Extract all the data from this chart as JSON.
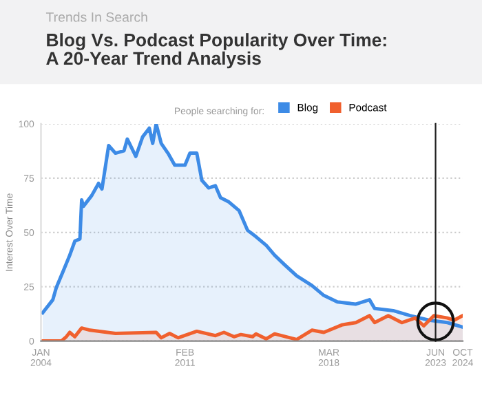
{
  "chart_data": {
    "type": "area",
    "subtitle": "Trends In Search",
    "title": "Blog Vs. Podcast Popularity Over Time:\nA 20-Year Trend Analysis",
    "ylabel": "Interest Over Time",
    "legend_title": "People searching for:",
    "legend": "top",
    "grid": "y",
    "series": [
      {
        "name": "Blog",
        "color": "#3d8be6",
        "x": [
          "2004-02",
          "2004-08",
          "2004-10",
          "2005-02",
          "2005-06",
          "2005-09",
          "2005-12",
          "2006-01",
          "2006-02",
          "2006-07",
          "2006-11",
          "2007-01",
          "2007-05",
          "2007-09",
          "2008-02",
          "2008-04",
          "2008-09",
          "2009-01",
          "2009-05",
          "2009-07",
          "2009-09",
          "2009-12",
          "2010-04",
          "2010-08",
          "2011-02",
          "2011-05",
          "2011-09",
          "2011-12",
          "2012-04",
          "2012-08",
          "2012-11",
          "2013-04",
          "2013-10",
          "2014-03",
          "2014-08",
          "2015-02",
          "2015-07",
          "2016-01",
          "2016-08",
          "2017-05",
          "2017-12",
          "2018-08",
          "2019-07",
          "2020-03",
          "2020-06",
          "2021-05",
          "2022-03",
          "2023-02",
          "2024-01",
          "2024-10"
        ],
        "values": [
          13,
          19,
          24.5,
          32,
          39.5,
          46,
          47,
          65,
          62,
          67,
          72.6,
          70,
          90,
          86.5,
          87.6,
          93,
          85,
          94,
          98,
          91,
          100,
          91,
          86.5,
          81,
          81,
          86.5,
          86.5,
          74,
          70.5,
          71.5,
          66,
          64,
          60,
          51,
          48,
          44,
          39.5,
          35,
          30,
          25.6,
          21,
          18,
          17,
          19,
          15,
          14,
          11.7,
          9.6,
          8.5,
          6.4
        ]
      },
      {
        "name": "Podcast",
        "color": "#f0602e",
        "x": [
          "2004-02",
          "2005-01",
          "2005-04",
          "2005-06",
          "2005-09",
          "2006-01",
          "2006-06",
          "2007-09",
          "2009-09",
          "2009-12",
          "2010-05",
          "2010-10",
          "2011-09",
          "2012-08",
          "2013-01",
          "2013-07",
          "2013-11",
          "2014-06",
          "2014-08",
          "2015-02",
          "2015-07",
          "2016-08",
          "2017-05",
          "2017-12",
          "2018-11",
          "2019-07",
          "2020-03",
          "2020-06",
          "2021-02",
          "2021-10",
          "2022-06",
          "2022-11",
          "2023-05",
          "2024-01",
          "2024-05",
          "2024-10"
        ],
        "values": [
          0,
          0,
          2,
          4,
          2,
          6,
          5,
          3.5,
          4,
          1.5,
          3.5,
          1.5,
          4.5,
          2.5,
          4,
          2,
          3,
          2,
          3.3,
          1,
          3.3,
          0.7,
          5,
          4,
          7.5,
          8.5,
          11.7,
          8.5,
          11.7,
          8.5,
          10.6,
          7,
          11.7,
          10.6,
          9.6,
          11.7
        ]
      }
    ],
    "xlim": [
      "2004-01",
      "2024-10"
    ],
    "xticks": [
      {
        "value": "2004-01",
        "label": "JAN\n2004"
      },
      {
        "value": "2011-02",
        "label": "FEB\n2011"
      },
      {
        "value": "2018-03",
        "label": "MAR\n2018"
      },
      {
        "value": "2023-06",
        "label": "JUN\n2023"
      },
      {
        "value": "2024-10",
        "label": "OCT\n2024"
      }
    ],
    "ylim": [
      0,
      100
    ],
    "yticks": [
      0,
      25,
      50,
      75,
      100
    ],
    "ref_lines": [
      {
        "axis": "x",
        "value": "2023-06",
        "color": "#222222"
      }
    ]
  }
}
